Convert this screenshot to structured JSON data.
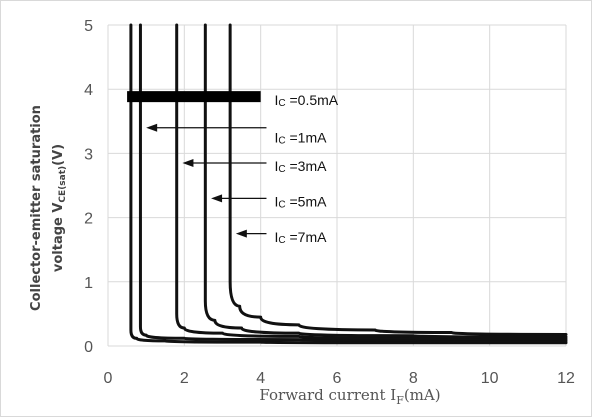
{
  "chart_data": {
    "type": "line",
    "xlabel_text": "Forward current I",
    "xlabel_sub": "F",
    "xlabel_unit": "(mA)",
    "ylabel_line1": "Collector-emitter saturation",
    "ylabel_line2_prefix": "voltage V",
    "ylabel_line2_sub": "CE(sat)",
    "ylabel_line2_unit": "(V)",
    "xlim": [
      0,
      12
    ],
    "ylim": [
      0,
      5
    ],
    "xticks": [
      "0",
      "2",
      "4",
      "6",
      "8",
      "10",
      "12"
    ],
    "yticks": [
      "0",
      "1",
      "2",
      "3",
      "4",
      "5"
    ],
    "grid": true,
    "series": [
      {
        "name": "Ic =0.5mA",
        "x_vertical": 0.6,
        "x": [
          0.6,
          0.6,
          0.75,
          1.5,
          4,
          8,
          12
        ],
        "y": [
          5,
          0.25,
          0.12,
          0.08,
          0.06,
          0.05,
          0.05
        ]
      },
      {
        "name": "Ic =1mA",
        "x_vertical": 0.85,
        "x": [
          0.85,
          0.85,
          1.0,
          2,
          5,
          8,
          12
        ],
        "y": [
          5,
          0.3,
          0.17,
          0.12,
          0.1,
          0.09,
          0.08
        ]
      },
      {
        "name": "Ic =3mA",
        "x_vertical": 1.8,
        "x": [
          1.8,
          1.8,
          2.0,
          3,
          5,
          8,
          12
        ],
        "y": [
          5,
          0.5,
          0.28,
          0.2,
          0.15,
          0.12,
          0.11
        ]
      },
      {
        "name": "Ic =5mA",
        "x_vertical": 2.55,
        "x": [
          2.55,
          2.55,
          2.8,
          3.5,
          5,
          8,
          12
        ],
        "y": [
          5,
          0.7,
          0.4,
          0.28,
          0.2,
          0.16,
          0.14
        ]
      },
      {
        "name": "Ic =7mA",
        "x_vertical": 3.2,
        "x": [
          3.2,
          3.2,
          3.45,
          4.0,
          5,
          7,
          9,
          12
        ],
        "y": [
          5,
          1.0,
          0.62,
          0.45,
          0.33,
          0.25,
          0.21,
          0.18
        ]
      }
    ],
    "annotations": [
      {
        "prefix": "I",
        "sub": "C",
        "text": " =0.5mA",
        "at": [
          4.1,
          3.83
        ],
        "arrow_tip": null
      },
      {
        "prefix": "I",
        "sub": "C",
        "text": " =1mA",
        "at": [
          4.1,
          3.25
        ],
        "arrow_tip": [
          1.0,
          3.4
        ]
      },
      {
        "prefix": "I",
        "sub": "C",
        "text": " =3mA",
        "at": [
          4.1,
          2.8
        ],
        "arrow_tip": [
          1.95,
          2.85
        ]
      },
      {
        "prefix": "I",
        "sub": "C",
        "text": " =5mA",
        "at": [
          4.1,
          2.25
        ],
        "arrow_tip": [
          2.7,
          2.3
        ]
      },
      {
        "prefix": "I",
        "sub": "C",
        "text": " =7mA",
        "at": [
          4.1,
          1.7
        ],
        "arrow_tip": [
          3.35,
          1.75
        ]
      }
    ]
  }
}
